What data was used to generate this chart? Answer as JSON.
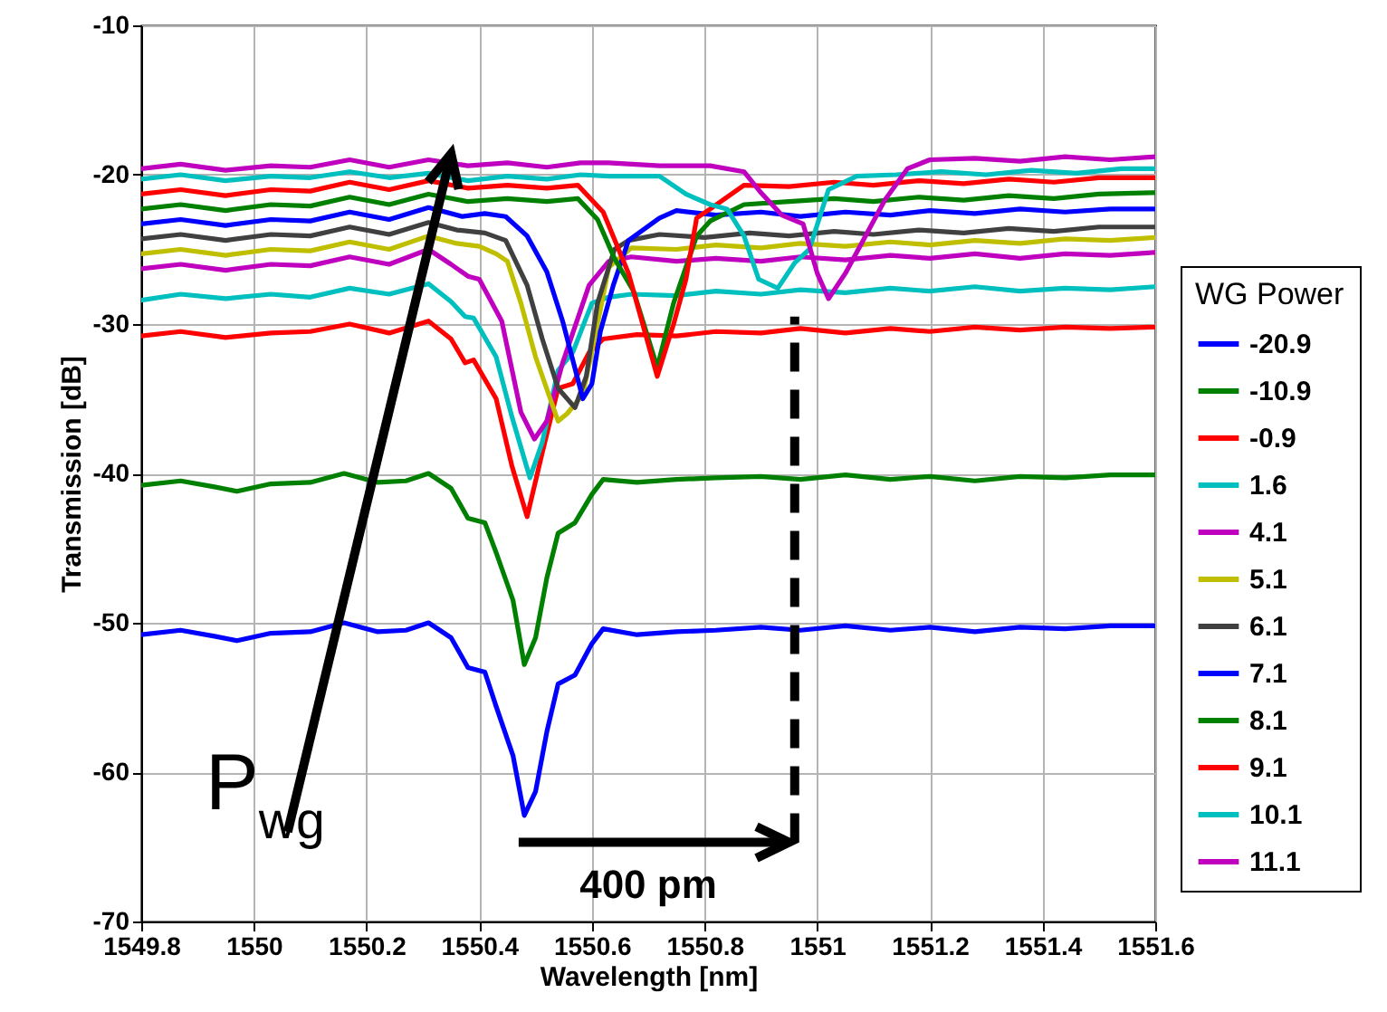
{
  "chart_data": {
    "type": "line",
    "xlabel": "Wavelength [nm]",
    "ylabel": "Transmission [dB]",
    "legend_title": "WG Power",
    "annotations": [
      "P$_{wg}$",
      "400 pm"
    ],
    "xlim": [
      1549.8,
      1551.6
    ],
    "ylim": [
      -70,
      -10
    ],
    "xticks": [
      1549.8,
      1550,
      1550.2,
      1550.4,
      1550.6,
      1550.8,
      1551,
      1551.2,
      1551.4,
      1551.6
    ],
    "yticks": [
      -70,
      -60,
      -50,
      -40,
      -30,
      -20,
      -10
    ],
    "grid": true,
    "legend": "bottom right",
    "series": [
      {
        "name": "-20.9",
        "color": "#0000ff",
        "x": [
          1549.8,
          1549.87,
          1549.93,
          1549.97,
          1550.03,
          1550.1,
          1550.16,
          1550.22,
          1550.27,
          1550.31,
          1550.35,
          1550.38,
          1550.41,
          1550.43,
          1550.46,
          1550.48,
          1550.5,
          1550.52,
          1550.54,
          1550.57,
          1550.6,
          1550.62,
          1550.68,
          1550.75,
          1550.82,
          1550.9,
          1550.97,
          1551.05,
          1551.13,
          1551.2,
          1551.28,
          1551.36,
          1551.44,
          1551.52,
          1551.6
        ],
        "values": [
          -50.8,
          -50.5,
          -50.9,
          -51.2,
          -50.7,
          -50.6,
          -50.0,
          -50.6,
          -50.5,
          -50.0,
          -51.0,
          -53.0,
          -53.3,
          -55.6,
          -58.9,
          -62.9,
          -61.3,
          -57.3,
          -54.1,
          -53.5,
          -51.4,
          -50.4,
          -50.8,
          -50.6,
          -50.5,
          -50.3,
          -50.5,
          -50.2,
          -50.5,
          -50.3,
          -50.6,
          -50.3,
          -50.4,
          -50.2,
          -50.2
        ]
      },
      {
        "name": "-10.9",
        "color": "#008000",
        "x": [
          1549.8,
          1549.87,
          1549.93,
          1549.97,
          1550.03,
          1550.1,
          1550.16,
          1550.22,
          1550.27,
          1550.31,
          1550.35,
          1550.38,
          1550.41,
          1550.43,
          1550.46,
          1550.48,
          1550.5,
          1550.52,
          1550.54,
          1550.57,
          1550.6,
          1550.62,
          1550.68,
          1550.75,
          1550.82,
          1550.9,
          1550.97,
          1551.05,
          1551.13,
          1551.2,
          1551.28,
          1551.36,
          1551.44,
          1551.52,
          1551.6
        ],
        "values": [
          -40.8,
          -40.5,
          -40.9,
          -41.2,
          -40.7,
          -40.6,
          -40.0,
          -40.6,
          -40.5,
          -40.0,
          -41.0,
          -43.0,
          -43.3,
          -45.3,
          -48.5,
          -52.8,
          -51.0,
          -47.0,
          -44.0,
          -43.3,
          -41.4,
          -40.4,
          -40.6,
          -40.4,
          -40.3,
          -40.2,
          -40.4,
          -40.1,
          -40.4,
          -40.2,
          -40.5,
          -40.2,
          -40.3,
          -40.1,
          -40.1
        ]
      },
      {
        "name": "-0.9",
        "color": "#ff0000",
        "x": [
          1549.8,
          1549.87,
          1549.95,
          1550.03,
          1550.1,
          1550.17,
          1550.24,
          1550.31,
          1550.35,
          1550.375,
          1550.39,
          1550.43,
          1550.458,
          1550.485,
          1550.512,
          1550.54,
          1550.566,
          1550.595,
          1550.62,
          1550.68,
          1550.75,
          1550.82,
          1550.9,
          1550.97,
          1551.05,
          1551.13,
          1551.2,
          1551.28,
          1551.36,
          1551.44,
          1551.52,
          1551.6
        ],
        "values": [
          -30.8,
          -30.5,
          -30.9,
          -30.6,
          -30.5,
          -30.0,
          -30.6,
          -29.8,
          -31.0,
          -32.6,
          -32.4,
          -35.0,
          -39.5,
          -42.9,
          -38.6,
          -34.3,
          -34.0,
          -31.9,
          -31.0,
          -30.7,
          -30.8,
          -30.5,
          -30.6,
          -30.3,
          -30.6,
          -30.3,
          -30.5,
          -30.2,
          -30.4,
          -30.2,
          -30.3,
          -30.2
        ]
      },
      {
        "name": "1.6",
        "color": "#00bfbf",
        "x": [
          1549.8,
          1549.87,
          1549.95,
          1550.03,
          1550.1,
          1550.17,
          1550.24,
          1550.31,
          1550.35,
          1550.375,
          1550.39,
          1550.43,
          1550.458,
          1550.49,
          1550.512,
          1550.54,
          1550.566,
          1550.6,
          1550.63,
          1550.67,
          1550.75,
          1550.82,
          1550.9,
          1550.97,
          1551.05,
          1551.13,
          1551.2,
          1551.28,
          1551.36,
          1551.44,
          1551.52,
          1551.6
        ],
        "values": [
          -28.4,
          -28.0,
          -28.3,
          -28.0,
          -28.2,
          -27.6,
          -28.0,
          -27.3,
          -28.5,
          -29.5,
          -29.6,
          -32.2,
          -36.2,
          -40.3,
          -37.9,
          -33.1,
          -31.9,
          -28.6,
          -28.2,
          -28.0,
          -28.1,
          -27.8,
          -28.0,
          -27.7,
          -27.9,
          -27.6,
          -27.8,
          -27.5,
          -27.8,
          -27.6,
          -27.7,
          -27.5
        ]
      },
      {
        "name": "4.1",
        "color": "#bf00bf",
        "x": [
          1549.8,
          1549.87,
          1549.95,
          1550.03,
          1550.1,
          1550.17,
          1550.24,
          1550.31,
          1550.35,
          1550.38,
          1550.4,
          1550.44,
          1550.474,
          1550.498,
          1550.52,
          1550.548,
          1550.595,
          1550.63,
          1550.67,
          1550.75,
          1550.82,
          1550.9,
          1550.97,
          1551.05,
          1551.13,
          1551.2,
          1551.28,
          1551.36,
          1551.44,
          1551.52,
          1551.6
        ],
        "values": [
          -26.3,
          -26.0,
          -26.4,
          -26.0,
          -26.1,
          -25.5,
          -26.0,
          -25.0,
          -26.0,
          -26.8,
          -27.0,
          -29.8,
          -35.9,
          -37.7,
          -36.5,
          -32.6,
          -27.4,
          -25.8,
          -25.5,
          -25.8,
          -25.6,
          -25.8,
          -25.5,
          -25.7,
          -25.4,
          -25.6,
          -25.3,
          -25.6,
          -25.3,
          -25.4,
          -25.2
        ]
      },
      {
        "name": "5.1",
        "color": "#bfbf00",
        "x": [
          1549.8,
          1549.87,
          1549.95,
          1550.03,
          1550.1,
          1550.17,
          1550.24,
          1550.31,
          1550.36,
          1550.4,
          1550.43,
          1550.45,
          1550.474,
          1550.5,
          1550.54,
          1550.556,
          1550.584,
          1550.61,
          1550.63,
          1550.67,
          1550.75,
          1550.82,
          1550.9,
          1550.97,
          1551.05,
          1551.13,
          1551.2,
          1551.28,
          1551.36,
          1551.44,
          1551.52,
          1551.6
        ],
        "values": [
          -25.3,
          -25.0,
          -25.4,
          -25.0,
          -25.1,
          -24.5,
          -25.0,
          -24.1,
          -24.6,
          -24.8,
          -25.3,
          -25.8,
          -28.6,
          -32.2,
          -36.5,
          -36.0,
          -34.7,
          -30.0,
          -26.2,
          -24.9,
          -25.0,
          -24.7,
          -24.9,
          -24.6,
          -24.8,
          -24.5,
          -24.7,
          -24.4,
          -24.6,
          -24.3,
          -24.4,
          -24.2
        ]
      },
      {
        "name": "6.1",
        "color": "#404040",
        "x": [
          1549.8,
          1549.87,
          1549.95,
          1550.03,
          1550.1,
          1550.17,
          1550.24,
          1550.31,
          1550.36,
          1550.41,
          1550.447,
          1550.485,
          1550.512,
          1550.54,
          1550.57,
          1550.59,
          1550.61,
          1550.64,
          1550.665,
          1550.72,
          1550.8,
          1550.88,
          1550.95,
          1551.03,
          1551.1,
          1551.18,
          1551.26,
          1551.34,
          1551.42,
          1551.5,
          1551.6
        ],
        "values": [
          -24.3,
          -24.0,
          -24.4,
          -24.0,
          -24.1,
          -23.5,
          -24.0,
          -23.2,
          -23.7,
          -23.9,
          -24.4,
          -27.4,
          -31.0,
          -34.3,
          -35.6,
          -33.5,
          -28.6,
          -25.0,
          -24.4,
          -24.0,
          -24.2,
          -23.9,
          -24.1,
          -23.8,
          -24.0,
          -23.7,
          -23.9,
          -23.6,
          -23.8,
          -23.5,
          -23.5
        ]
      },
      {
        "name": "7.1",
        "color": "#0000ff",
        "x": [
          1549.8,
          1549.87,
          1549.95,
          1550.03,
          1550.1,
          1550.17,
          1550.24,
          1550.31,
          1550.37,
          1550.41,
          1550.447,
          1550.485,
          1550.52,
          1550.548,
          1550.584,
          1550.6,
          1550.615,
          1550.638,
          1550.665,
          1550.72,
          1550.75,
          1550.82,
          1550.9,
          1550.97,
          1551.05,
          1551.13,
          1551.2,
          1551.28,
          1551.36,
          1551.44,
          1551.52,
          1551.6
        ],
        "values": [
          -23.3,
          -23.0,
          -23.4,
          -23.0,
          -23.1,
          -22.5,
          -23.0,
          -22.2,
          -22.8,
          -22.6,
          -22.8,
          -24.1,
          -26.5,
          -29.8,
          -35.0,
          -34.0,
          -30.5,
          -27.4,
          -24.4,
          -22.9,
          -22.4,
          -22.7,
          -22.5,
          -22.8,
          -22.5,
          -22.7,
          -22.4,
          -22.6,
          -22.3,
          -22.5,
          -22.3,
          -22.3
        ]
      },
      {
        "name": "8.1",
        "color": "#008000",
        "x": [
          1549.8,
          1549.87,
          1549.95,
          1550.03,
          1550.1,
          1550.17,
          1550.24,
          1550.31,
          1550.38,
          1550.45,
          1550.52,
          1550.575,
          1550.61,
          1550.64,
          1550.674,
          1550.716,
          1550.745,
          1550.786,
          1550.81,
          1550.87,
          1550.95,
          1551.03,
          1551.1,
          1551.18,
          1551.26,
          1551.34,
          1551.42,
          1551.5,
          1551.6
        ],
        "values": [
          -22.3,
          -22.0,
          -22.4,
          -22.0,
          -22.1,
          -21.5,
          -22.0,
          -21.3,
          -21.8,
          -21.6,
          -21.8,
          -21.6,
          -23.0,
          -25.6,
          -27.8,
          -32.9,
          -28.6,
          -24.1,
          -23.1,
          -22.0,
          -21.8,
          -21.6,
          -21.8,
          -21.5,
          -21.7,
          -21.4,
          -21.6,
          -21.3,
          -21.2
        ]
      },
      {
        "name": "9.1",
        "color": "#ff0000",
        "x": [
          1549.8,
          1549.87,
          1549.95,
          1550.03,
          1550.1,
          1550.17,
          1550.24,
          1550.31,
          1550.38,
          1550.45,
          1550.52,
          1550.575,
          1550.62,
          1550.665,
          1550.716,
          1550.745,
          1550.767,
          1550.786,
          1550.81,
          1550.87,
          1550.95,
          1551.03,
          1551.1,
          1551.18,
          1551.26,
          1551.34,
          1551.42,
          1551.5,
          1551.6
        ],
        "values": [
          -21.3,
          -21.0,
          -21.4,
          -21.0,
          -21.1,
          -20.5,
          -21.0,
          -20.4,
          -20.9,
          -20.7,
          -20.9,
          -20.7,
          -22.5,
          -26.6,
          -33.5,
          -30.0,
          -27.0,
          -22.9,
          -22.3,
          -20.7,
          -20.8,
          -20.5,
          -20.7,
          -20.4,
          -20.6,
          -20.3,
          -20.5,
          -20.2,
          -20.2
        ]
      },
      {
        "name": "10.1",
        "color": "#00bfbf",
        "x": [
          1549.8,
          1549.87,
          1549.95,
          1550.03,
          1550.1,
          1550.17,
          1550.24,
          1550.31,
          1550.38,
          1550.45,
          1550.52,
          1550.58,
          1550.63,
          1550.72,
          1550.767,
          1550.81,
          1550.84,
          1550.87,
          1550.896,
          1550.93,
          1550.96,
          1550.986,
          1551.02,
          1551.07,
          1551.14,
          1551.22,
          1551.3,
          1551.38,
          1551.46,
          1551.54,
          1551.6
        ],
        "values": [
          -20.3,
          -20.0,
          -20.4,
          -20.1,
          -20.2,
          -19.8,
          -20.2,
          -19.9,
          -20.4,
          -20.1,
          -20.3,
          -20.0,
          -20.1,
          -20.1,
          -21.3,
          -22.0,
          -22.3,
          -24.1,
          -27.0,
          -27.6,
          -25.9,
          -25.0,
          -21.0,
          -20.1,
          -20.0,
          -19.8,
          -20.0,
          -19.7,
          -19.9,
          -19.6,
          -19.6
        ]
      },
      {
        "name": "11.1",
        "color": "#bf00bf",
        "x": [
          1549.8,
          1549.87,
          1549.95,
          1550.03,
          1550.1,
          1550.17,
          1550.24,
          1550.31,
          1550.38,
          1550.45,
          1550.52,
          1550.58,
          1550.63,
          1550.72,
          1550.81,
          1550.87,
          1550.9,
          1550.937,
          1550.975,
          1551.0,
          1551.02,
          1551.05,
          1551.09,
          1551.12,
          1551.16,
          1551.2,
          1551.28,
          1551.36,
          1551.44,
          1551.52,
          1551.6
        ],
        "values": [
          -19.6,
          -19.3,
          -19.7,
          -19.4,
          -19.5,
          -19.0,
          -19.5,
          -19.0,
          -19.4,
          -19.2,
          -19.5,
          -19.2,
          -19.2,
          -19.4,
          -19.4,
          -19.8,
          -21.2,
          -22.7,
          -23.3,
          -26.6,
          -28.3,
          -26.6,
          -23.8,
          -21.7,
          -19.6,
          -19.0,
          -18.9,
          -19.1,
          -18.8,
          -19.0,
          -18.8
        ]
      }
    ]
  }
}
